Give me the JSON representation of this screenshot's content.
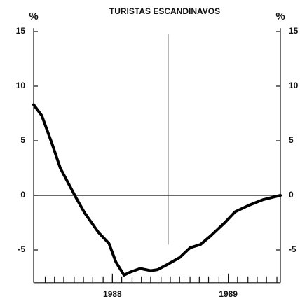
{
  "chart_data": {
    "type": "line",
    "title": "TURISTAS ESCANDINAVOS",
    "ylabel": "%",
    "y2label": "%",
    "x": [
      1987.32,
      1987.39,
      1987.48,
      1987.55,
      1987.61,
      1987.68,
      1987.76,
      1987.88,
      1987.97,
      1988.03,
      1988.1,
      1988.16,
      1988.24,
      1988.33,
      1988.39,
      1988.48,
      1988.58,
      1988.67,
      1988.76,
      1988.85,
      1988.97,
      1989.06,
      1989.18,
      1989.3,
      1989.45
    ],
    "series": [
      {
        "color": "#000000",
        "values": [
          8.3,
          7.3,
          4.7,
          2.5,
          1.3,
          -0.1,
          -1.6,
          -3.4,
          -4.4,
          -6.1,
          -7.3,
          -7.0,
          -6.7,
          -6.9,
          -6.8,
          -6.3,
          -5.7,
          -4.8,
          -4.5,
          -3.7,
          -2.5,
          -1.5,
          -0.9,
          -0.4,
          0
        ]
      }
    ],
    "xlim": [
      1987.32,
      1989.45
    ],
    "xticks": [
      {
        "value": 1988,
        "label": "1988"
      },
      {
        "value": 1989,
        "label": "1989"
      }
    ],
    "xminorticks": [
      1987.42,
      1987.5,
      1987.58,
      1987.67,
      1987.75,
      1987.83,
      1987.92,
      1988.0,
      1988.08,
      1988.17,
      1988.25,
      1988.33,
      1988.42,
      1988.5,
      1988.58,
      1988.67,
      1988.75,
      1988.83,
      1988.92,
      1989.0,
      1989.08,
      1989.17,
      1989.25,
      1989.33,
      1989.42
    ],
    "ylim": [
      -8,
      15.3
    ],
    "yticks": [
      15,
      10,
      5,
      0,
      -5
    ],
    "y2lim": [
      -8,
      15.3
    ],
    "y2ticks": [
      15,
      10,
      5,
      0,
      -5
    ],
    "zeroline": true,
    "vline": {
      "x": 1988.48,
      "y": [
        -4.5,
        14.8
      ]
    }
  }
}
